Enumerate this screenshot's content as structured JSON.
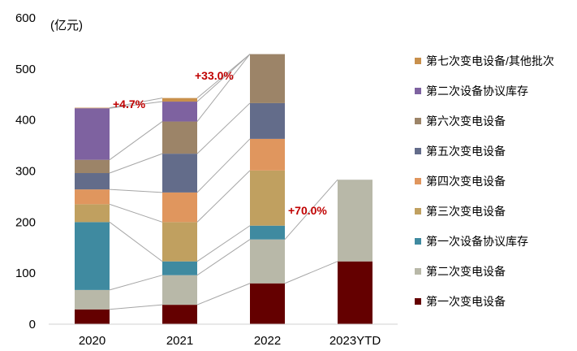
{
  "chart_data": {
    "type": "bar",
    "stacked": true,
    "unit_label": "(亿元)",
    "categories": [
      "2020",
      "2021",
      "2022",
      "2023YTD"
    ],
    "ylim": [
      0,
      600
    ],
    "yticks": [
      0,
      100,
      200,
      300,
      400,
      500,
      600
    ],
    "grid": false,
    "legend_position": "right",
    "series": [
      {
        "name": "第一次变电设备",
        "color": "#640000",
        "values": [
          29,
          38,
          80,
          123
        ]
      },
      {
        "name": "第二次变电设备",
        "color": "#b8b8a8",
        "values": [
          38,
          58,
          86,
          160
        ]
      },
      {
        "name": "第一次设备协议库存",
        "color": "#3f8aa0",
        "values": [
          133,
          27,
          27,
          0
        ]
      },
      {
        "name": "第三次变电设备",
        "color": "#c0a060",
        "values": [
          35,
          77,
          108,
          0
        ]
      },
      {
        "name": "第四次变电设备",
        "color": "#e0965e",
        "values": [
          29,
          58,
          62,
          0
        ]
      },
      {
        "name": "第五次变电设备",
        "color": "#636c8a",
        "values": [
          32,
          76,
          70,
          0
        ]
      },
      {
        "name": "第六次变电设备",
        "color": "#9c8468",
        "values": [
          26,
          63,
          96,
          0
        ]
      },
      {
        "name": "第二次设备协议库存",
        "color": "#7e62a0",
        "values": [
          101,
          39,
          0,
          0
        ]
      },
      {
        "name": "第七次变电设备/其他批次",
        "color": "#c8904c",
        "values": [
          1,
          7,
          0,
          0
        ]
      }
    ],
    "annotations": [
      {
        "text": "+4.7%",
        "between": [
          "2020",
          "2021"
        ]
      },
      {
        "text": "+33.0%",
        "between": [
          "2021",
          "2022"
        ]
      },
      {
        "text": "+70.0%",
        "between": [
          "2022",
          "2023YTD"
        ]
      }
    ],
    "annotation_color": "#c00000"
  }
}
